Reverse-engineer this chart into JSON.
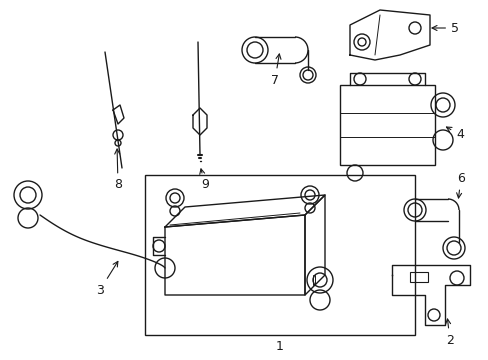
{
  "background_color": "#ffffff",
  "line_color": "#1a1a1a",
  "fig_width": 4.89,
  "fig_height": 3.6,
  "dpi": 100,
  "label_fontsize": 9,
  "lw": 1.0
}
